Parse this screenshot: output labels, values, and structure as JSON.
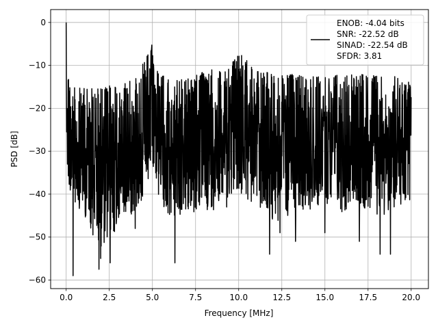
{
  "chart_data": {
    "type": "line",
    "xlabel": "Frequency [MHz]",
    "ylabel": "PSD [dB]",
    "xlim": [
      -0.9,
      21.0
    ],
    "ylim": [
      -62.0,
      3.0
    ],
    "xticks": [
      0.0,
      2.5,
      5.0,
      7.5,
      10.0,
      12.5,
      15.0,
      17.5,
      20.0
    ],
    "xtick_labels": [
      "0.0",
      "2.5",
      "5.0",
      "7.5",
      "10.0",
      "12.5",
      "15.0",
      "17.5",
      "20.0"
    ],
    "yticks": [
      0,
      -10,
      -20,
      -30,
      -40,
      -50,
      -60
    ],
    "ytick_labels": [
      "0",
      "−10",
      "−20",
      "−30",
      "−40",
      "−50",
      "−60"
    ],
    "grid": true,
    "legend_position": "upper-right",
    "legend_lines": [
      "ENOB: -4.04 bits",
      "SNR: -22.52 dB",
      "SINAD: -22.54 dB",
      "SFDR: 3.81"
    ],
    "series": [
      {
        "color": "#000000",
        "x": [
          0.0,
          0.05,
          0.2,
          0.5,
          1.0,
          2.0,
          3.0,
          4.0,
          4.8,
          5.0,
          5.2,
          6.0,
          7.0,
          8.0,
          8.75,
          9.0,
          10.0,
          11.0,
          12.0,
          13.0,
          14.0,
          15.0,
          16.0,
          17.0,
          18.0,
          19.0,
          20.0
        ],
        "y_upper": [
          0.0,
          -11.0,
          -14.0,
          -15.0,
          -15.0,
          -15.0,
          -14.5,
          -13.0,
          -7.0,
          -4.0,
          -11.0,
          -13.0,
          -13.0,
          -11.5,
          -9.5,
          -12.0,
          -7.0,
          -11.0,
          -12.0,
          -12.0,
          -12.5,
          -12.5,
          -12.0,
          -11.5,
          -12.5,
          -12.5,
          -14.0
        ],
        "y_lower": [
          -28.0,
          -36.0,
          -40.0,
          -42.0,
          -45.0,
          -53.0,
          -48.0,
          -44.0,
          -40.0,
          -37.0,
          -40.0,
          -46.0,
          -46.0,
          -44.0,
          -43.0,
          -40.0,
          -41.0,
          -43.0,
          -46.0,
          -47.0,
          -44.0,
          -42.0,
          -45.0,
          -43.0,
          -46.0,
          -44.0,
          -42.0
        ],
        "deep_dips": [
          [
            0.4,
            -59.0
          ],
          [
            1.9,
            -57.5
          ],
          [
            2.55,
            -56.0
          ],
          [
            2.0,
            -55.0
          ],
          [
            1.55,
            -49.5
          ],
          [
            6.3,
            -56.0
          ],
          [
            11.8,
            -54.0
          ],
          [
            18.8,
            -54.0
          ],
          [
            12.4,
            -49.0
          ],
          [
            13.3,
            -51.0
          ],
          [
            18.2,
            -54.0
          ],
          [
            15.0,
            -49.0
          ],
          [
            9.3,
            -43.0
          ],
          [
            17.0,
            -51.0
          ],
          [
            4.0,
            -48.0
          ]
        ]
      }
    ]
  }
}
